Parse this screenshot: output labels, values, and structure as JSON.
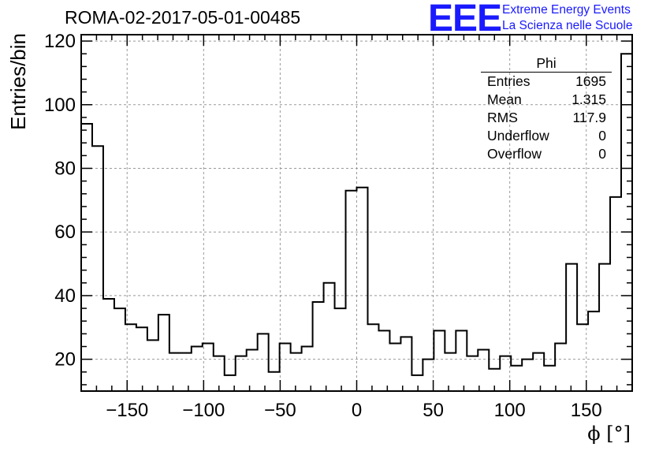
{
  "chart_data": {
    "type": "bar",
    "title": "ROMA-02-2017-05-01-00485",
    "xlabel": "ϕ [°]",
    "ylabel": "Entries/bin",
    "xlim": [
      -180,
      180
    ],
    "ylim": [
      10,
      122
    ],
    "x_ticks": [
      -150,
      -100,
      -50,
      0,
      50,
      100,
      150
    ],
    "y_ticks": [
      20,
      40,
      60,
      80,
      100,
      120
    ],
    "grid": true,
    "bin_width": 7.2,
    "bin_edges_start": -180,
    "values": [
      94,
      87,
      39,
      36,
      31,
      30,
      26,
      34,
      22,
      22,
      24,
      25,
      21,
      15,
      21,
      23,
      28,
      16,
      25,
      22,
      24,
      38,
      44,
      36,
      73,
      74,
      31,
      29,
      25,
      27,
      15,
      20,
      29,
      22,
      29,
      21,
      23,
      17,
      21,
      18,
      20,
      22,
      18,
      25,
      50,
      31,
      35,
      50,
      71,
      116
    ],
    "stats": {
      "name": "Phi",
      "rows": [
        {
          "label": "Entries",
          "value": "1695"
        },
        {
          "label": "Mean",
          "value": "1.315"
        },
        {
          "label": "RMS",
          "value": "117.9"
        },
        {
          "label": "Underflow",
          "value": "0"
        },
        {
          "label": "Overflow",
          "value": "0"
        }
      ]
    }
  },
  "logo": {
    "text": "EEE",
    "line1": "Extreme Energy Events",
    "line2": "La Scienza nelle Scuole",
    "color": "#1a1aff"
  }
}
